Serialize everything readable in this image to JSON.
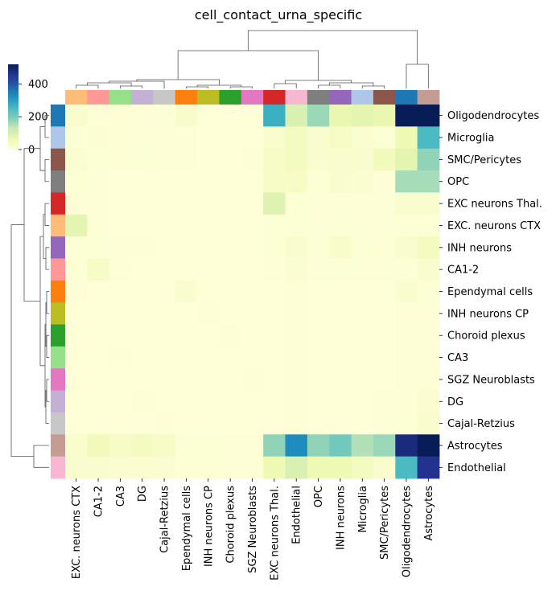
{
  "chart_data": {
    "type": "heatmap",
    "title": "cell_contact_urna_specific",
    "rows": [
      "Oligodendrocytes",
      "Microglia",
      "SMC/Pericytes",
      "OPC",
      "EXC neurons Thal.",
      "EXC. neurons CTX",
      "INH neurons",
      "CA1-2",
      "Ependymal cells",
      "INH neurons CP",
      "Choroid plexus",
      "CA3",
      "SGZ Neuroblasts",
      "DG",
      "Cajal-Retzius",
      "Astrocytes",
      "Endothelial"
    ],
    "columns": [
      "EXC. neurons CTX",
      "CA1-2",
      "CA3",
      "DG",
      "Cajal-Retzius",
      "Ependymal cells",
      "INH neurons CP",
      "Choroid plexus",
      "SGZ Neuroblasts",
      "EXC neurons Thal.",
      "Endothelial",
      "OPC",
      "INH neurons",
      "Microglia",
      "SMC/Pericytes",
      "Oligodendrocytes",
      "Astrocytes"
    ],
    "values": [
      [
        20,
        8,
        8,
        5,
        5,
        25,
        3,
        3,
        3,
        270,
        100,
        170,
        70,
        80,
        70,
        520,
        520
      ],
      [
        10,
        12,
        8,
        5,
        5,
        5,
        3,
        3,
        3,
        20,
        40,
        20,
        30,
        15,
        10,
        60,
        250
      ],
      [
        15,
        10,
        8,
        10,
        6,
        5,
        3,
        3,
        5,
        30,
        40,
        20,
        20,
        20,
        50,
        80,
        180
      ],
      [
        10,
        5,
        3,
        3,
        3,
        3,
        3,
        3,
        3,
        30,
        30,
        10,
        20,
        15,
        5,
        160,
        160
      ],
      [
        8,
        5,
        3,
        3,
        3,
        3,
        3,
        3,
        3,
        90,
        10,
        5,
        5,
        5,
        5,
        20,
        20
      ],
      [
        80,
        8,
        3,
        3,
        3,
        3,
        3,
        3,
        3,
        10,
        10,
        5,
        10,
        5,
        5,
        10,
        10
      ],
      [
        10,
        10,
        5,
        5,
        3,
        3,
        3,
        3,
        3,
        10,
        20,
        10,
        25,
        10,
        8,
        20,
        40
      ],
      [
        8,
        30,
        5,
        3,
        3,
        3,
        3,
        3,
        3,
        5,
        15,
        5,
        10,
        5,
        5,
        10,
        20
      ],
      [
        5,
        3,
        3,
        3,
        3,
        20,
        3,
        3,
        3,
        3,
        5,
        3,
        3,
        3,
        3,
        20,
        10
      ],
      [
        3,
        3,
        3,
        3,
        3,
        3,
        5,
        3,
        3,
        3,
        5,
        3,
        3,
        3,
        3,
        5,
        5
      ],
      [
        3,
        3,
        3,
        3,
        3,
        3,
        3,
        5,
        3,
        3,
        5,
        3,
        3,
        3,
        3,
        5,
        5
      ],
      [
        3,
        3,
        5,
        3,
        3,
        3,
        3,
        3,
        3,
        3,
        5,
        3,
        3,
        3,
        3,
        5,
        5
      ],
      [
        3,
        3,
        3,
        3,
        3,
        3,
        3,
        3,
        5,
        3,
        5,
        3,
        3,
        3,
        3,
        5,
        8
      ],
      [
        3,
        3,
        3,
        8,
        3,
        3,
        3,
        3,
        3,
        3,
        5,
        3,
        3,
        3,
        5,
        8,
        15
      ],
      [
        3,
        3,
        3,
        3,
        5,
        3,
        3,
        3,
        3,
        3,
        5,
        3,
        3,
        3,
        5,
        10,
        20
      ],
      [
        20,
        50,
        30,
        40,
        30,
        10,
        10,
        5,
        5,
        180,
        330,
        180,
        210,
        150,
        170,
        480,
        540
      ],
      [
        20,
        20,
        15,
        15,
        15,
        8,
        8,
        5,
        5,
        60,
        100,
        60,
        60,
        40,
        20,
        250,
        460
      ]
    ],
    "row_colors": [
      "#1f77b4",
      "#aec7e8",
      "#8c564b",
      "#7f7f7f",
      "#d62728",
      "#ffbb78",
      "#9467bd",
      "#ff9896",
      "#ff7f0e",
      "#bcbd22",
      "#2ca02c",
      "#98df8a",
      "#e377c2",
      "#c5b0d5",
      "#c7c7c7",
      "#c49c94",
      "#f7b6d2"
    ],
    "col_colors": [
      "#ffbb78",
      "#ff9896",
      "#98df8a",
      "#c5b0d5",
      "#c7c7c7",
      "#ff7f0e",
      "#bcbd22",
      "#2ca02c",
      "#e377c2",
      "#d62728",
      "#f7b6d2",
      "#7f7f7f",
      "#9467bd",
      "#aec7e8",
      "#8c564b",
      "#1f77b4",
      "#c49c94"
    ],
    "colormap": "YlGnBu",
    "colorbar": {
      "ticks": [
        0,
        200,
        400
      ],
      "range": [
        0,
        520
      ]
    }
  }
}
